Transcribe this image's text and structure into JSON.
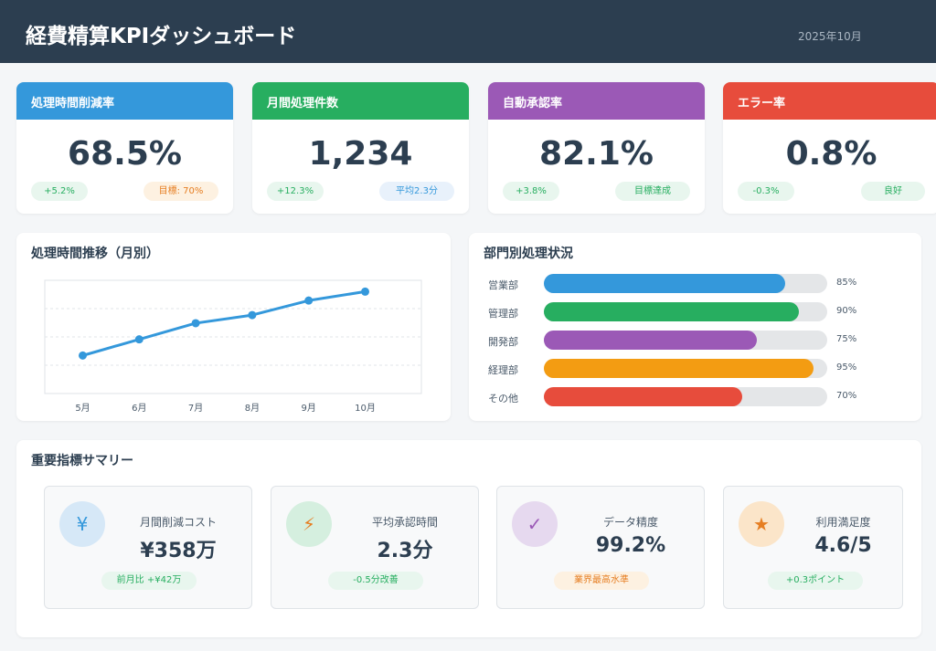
{
  "header": {
    "title": "経費精算KPIダッシュボード",
    "date": "2025年10月"
  },
  "kpis": [
    {
      "label": "処理時間削減率",
      "value": "68.5%",
      "change": "+5.2%",
      "note": "目標: 70%",
      "color": "#3498db",
      "note_bg": "#fdf1e1",
      "note_color": "#e67e22"
    },
    {
      "label": "月間処理件数",
      "value": "1,234",
      "change": "+12.3%",
      "note": "平均2.3分",
      "color": "#27ae60",
      "note_bg": "#e8f1fb",
      "note_color": "#3498db"
    },
    {
      "label": "自動承認率",
      "value": "82.1%",
      "change": "+3.8%",
      "note": "目標達成",
      "color": "#9b59b6",
      "note_bg": "#e8f6ee",
      "note_color": "#27ae60"
    },
    {
      "label": "エラー率",
      "value": "0.8%",
      "change": "-0.3%",
      "note": "良好",
      "color": "#e74c3c",
      "note_bg": "#e8f6ee",
      "note_color": "#27ae60"
    }
  ],
  "trend": {
    "title": "処理時間推移（月別）",
    "chart_data": {
      "type": "line",
      "categories": [
        "5月",
        "6月",
        "7月",
        "8月",
        "9月",
        "10月"
      ],
      "values": [
        27,
        47,
        67,
        77,
        95,
        106
      ],
      "ylim": [
        -20,
        120
      ],
      "grid": true,
      "color": "#3498db"
    }
  },
  "departments": {
    "title": "部門別処理状況",
    "items": [
      {
        "name": "営業部",
        "pct_label": "85%",
        "value": 85,
        "color": "#3498db"
      },
      {
        "name": "管理部",
        "pct_label": "90%",
        "value": 90,
        "color": "#27ae60"
      },
      {
        "name": "開発部",
        "pct_label": "75%",
        "value": 75,
        "color": "#9b59b6"
      },
      {
        "name": "経理部",
        "pct_label": "95%",
        "value": 95,
        "color": "#f39c12"
      },
      {
        "name": "その他",
        "pct_label": "70%",
        "value": 70,
        "color": "#e74c3c"
      }
    ]
  },
  "summary": {
    "title": "重要指標サマリー",
    "items": [
      {
        "icon": "yen-icon",
        "glyph": "¥",
        "label": "月間削減コスト",
        "value": "¥358万",
        "note": "前月比 +¥42万",
        "icon_bg": "#d6e8f7",
        "icon_color": "#3498db",
        "note_bg": "#e8f6ee",
        "note_color": "#27ae60"
      },
      {
        "icon": "lightning-icon",
        "glyph": "⚡",
        "label": "平均承認時間",
        "value": "2.3分",
        "note": "-0.5分改善",
        "icon_bg": "#d5efdf",
        "icon_color": "#e67e22",
        "note_bg": "#e8f6ee",
        "note_color": "#27ae60"
      },
      {
        "icon": "checkmark-icon",
        "glyph": "✓",
        "label": "データ精度",
        "value": "99.2%",
        "note": "業界最高水準",
        "icon_bg": "#e6d9ef",
        "icon_color": "#9b59b6",
        "note_bg": "#fdf1e1",
        "note_color": "#e67e22"
      },
      {
        "icon": "star-icon",
        "glyph": "★",
        "label": "利用満足度",
        "value": "4.6/5",
        "note": "+0.3ポイント",
        "icon_bg": "#fbe5c9",
        "icon_color": "#e67e22",
        "note_bg": "#e8f6ee",
        "note_color": "#27ae60"
      }
    ]
  }
}
